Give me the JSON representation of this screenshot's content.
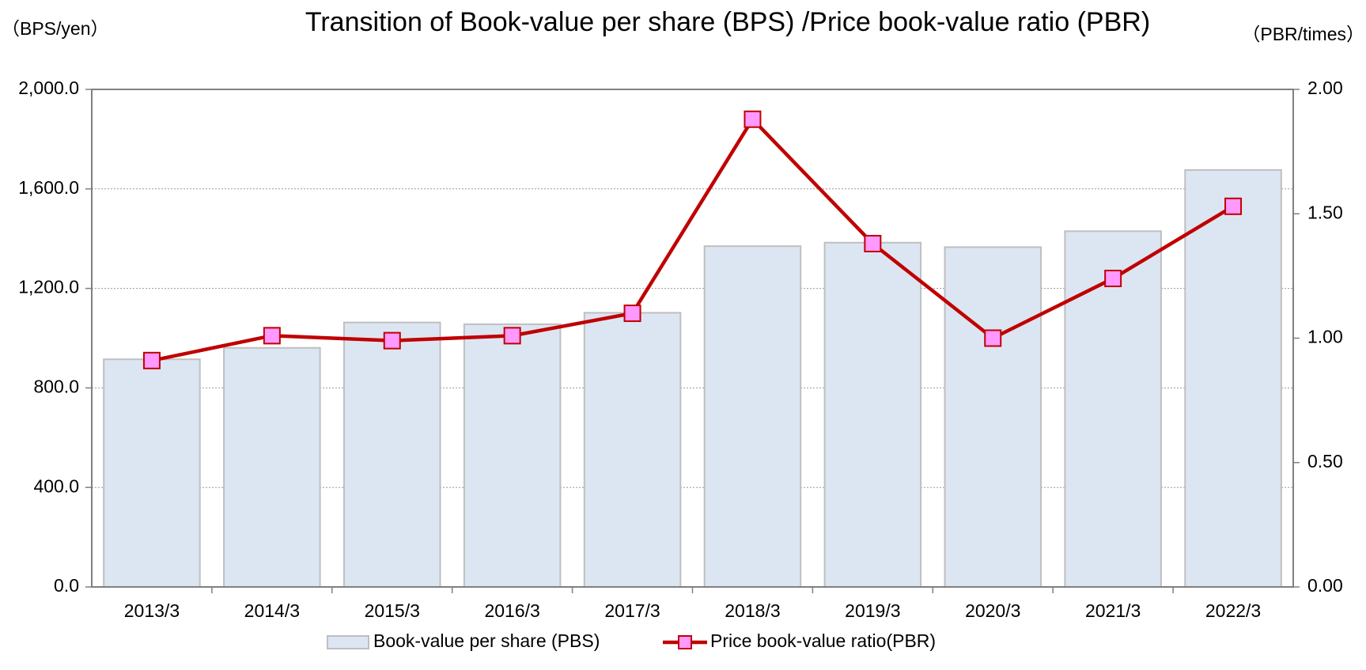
{
  "chart_data": {
    "type": "bar_line",
    "title": "Transition of Book-value per share (BPS) /Price book-value ratio (PBR)",
    "y_axis_label": "（BPS/yen）",
    "y2_axis_label": "（PBR/times）",
    "categories": [
      "2013/3",
      "2014/3",
      "2015/3",
      "2016/3",
      "2017/3",
      "2018/3",
      "2019/3",
      "2020/3",
      "2021/3",
      "2022/3"
    ],
    "series": [
      {
        "name": "Book-value per share (PBS)",
        "type": "bar",
        "color": "#dce6f2",
        "edge": "#bfbfbf",
        "values": [
          915,
          961,
          1063,
          1056,
          1102,
          1370,
          1384,
          1366,
          1430,
          1676
        ]
      },
      {
        "name": "Price book-value ratio(PBR)",
        "type": "line",
        "axis": "y2",
        "color": "#c00000",
        "marker_color": "#ff99ff",
        "values": [
          0.91,
          1.01,
          0.99,
          1.01,
          1.1,
          1.88,
          1.38,
          1.0,
          1.24,
          1.53
        ]
      }
    ],
    "ylim": [
      0,
      2000
    ],
    "yticks": [
      {
        "value": 0,
        "label": "0.0"
      },
      {
        "value": 400,
        "label": "400.0"
      },
      {
        "value": 800,
        "label": "800.0"
      },
      {
        "value": 1200,
        "label": "1,200.0"
      },
      {
        "value": 1600,
        "label": "1,600.0"
      },
      {
        "value": 2000,
        "label": "2,000.0"
      }
    ],
    "y2lim": [
      0,
      2
    ],
    "y2ticks": [
      {
        "value": 0,
        "label": "0.00"
      },
      {
        "value": 0.5,
        "label": "0.50"
      },
      {
        "value": 1,
        "label": "1.00"
      },
      {
        "value": 1.5,
        "label": "1.50"
      },
      {
        "value": 2,
        "label": "2.00"
      }
    ],
    "grid": true
  }
}
